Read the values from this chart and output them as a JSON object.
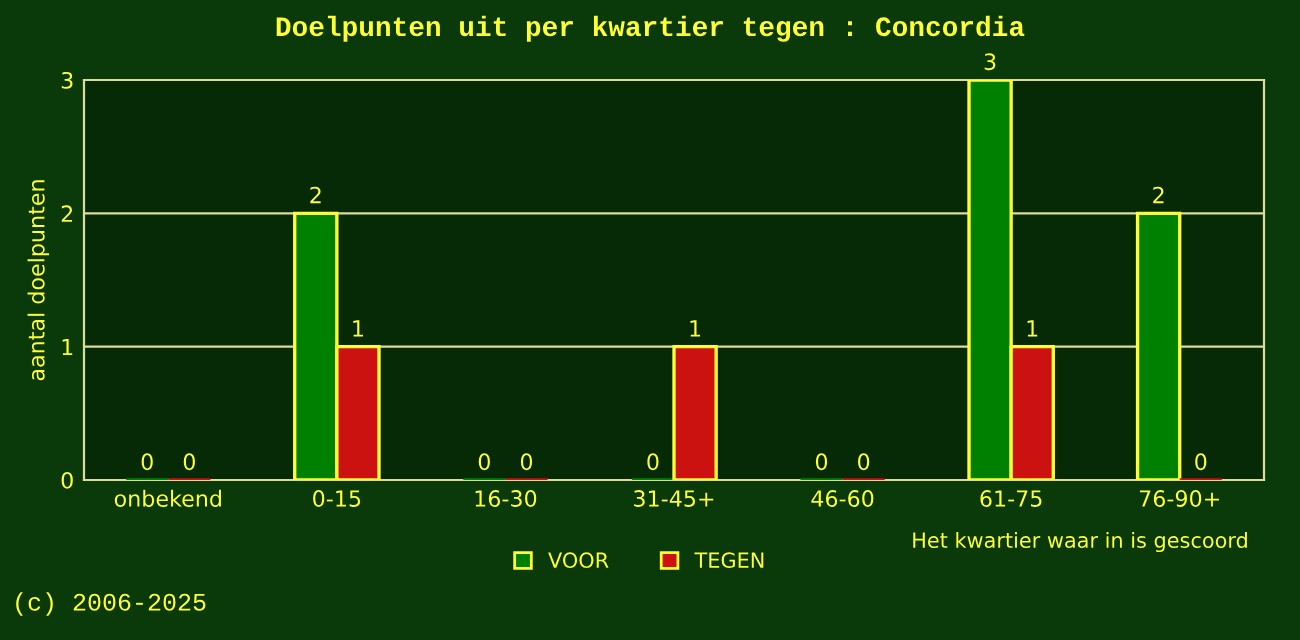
{
  "chart_data": {
    "type": "bar",
    "title": "Doelpunten uit per kwartier tegen : Concordia",
    "xlabel": "Het kwartier waar in is gescoord",
    "ylabel": "aantal doelpunten",
    "categories": [
      "onbekend",
      "0-15",
      "16-30",
      "31-45+",
      "46-60",
      "61-75",
      "76-90+"
    ],
    "series": [
      {
        "name": "VOOR",
        "color": "#008000",
        "values": [
          0,
          2,
          0,
          0,
          0,
          3,
          2
        ]
      },
      {
        "name": "TEGEN",
        "color": "#cc1111",
        "values": [
          0,
          1,
          0,
          1,
          0,
          1,
          0
        ]
      }
    ],
    "ylim": [
      0,
      3
    ],
    "yticks": [
      0,
      1,
      2,
      3
    ],
    "grid": "y",
    "legend": "bottom",
    "data_labels": true,
    "annotations": [
      "(c) 2006-2025"
    ]
  }
}
